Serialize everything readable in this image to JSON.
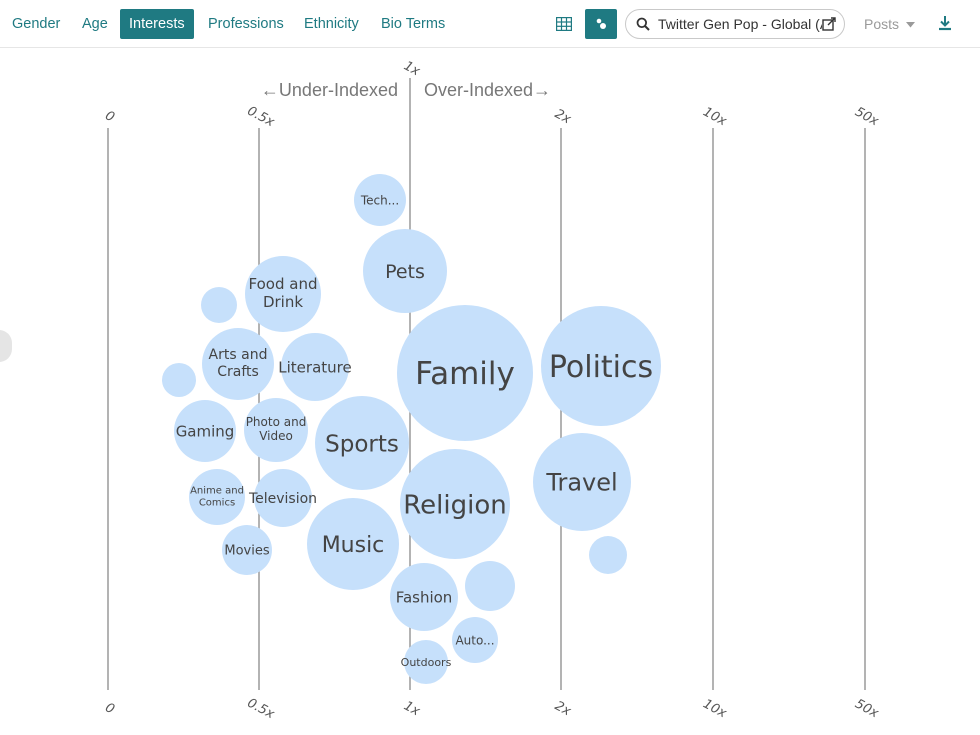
{
  "tabs": [
    {
      "label": "Gender",
      "active": false
    },
    {
      "label": "Age",
      "active": false
    },
    {
      "label": "Interests",
      "active": true
    },
    {
      "label": "Professions",
      "active": false
    },
    {
      "label": "Ethnicity",
      "active": false
    },
    {
      "label": "Bio Terms",
      "active": false
    }
  ],
  "view_toggle": {
    "table_icon": "table-icon",
    "bubble_icon": "bubble-chart-icon",
    "active": "bubble"
  },
  "search": {
    "value": "Twitter Gen Pop - Global (All",
    "icon": "search-icon",
    "open_icon": "open-external-icon"
  },
  "posts_dropdown": {
    "label": "Posts",
    "icon": "caret-down-icon"
  },
  "download": {
    "icon": "download-icon"
  },
  "colors": {
    "accent": "#1f7a82",
    "bubble": "#c6e0fb",
    "axis": "#8a8a8a"
  },
  "chart": {
    "under_label": "←Under-Indexed",
    "over_label": "Over-Indexed→",
    "axis_ticks": [
      "0",
      "0.5x",
      "1x",
      "2x",
      "10x",
      "50x"
    ],
    "center_tick": "1x"
  },
  "chart_data": {
    "type": "scatter",
    "title": "",
    "xlabel": "",
    "ylabel": "",
    "x_ticks": [
      "0",
      "0.5x",
      "1x",
      "2x",
      "10x",
      "50x"
    ],
    "points": [
      {
        "label": "Tech...",
        "index": 0.9,
        "size": 26
      },
      {
        "label": "Pets",
        "index": 0.98,
        "size": 42
      },
      {
        "label": "Food and Drink",
        "index": 0.58,
        "size": 38
      },
      {
        "label": "",
        "index": 0.35,
        "size": 18
      },
      {
        "label": "Arts and Crafts",
        "index": 0.42,
        "size": 36
      },
      {
        "label": "Literature",
        "index": 0.68,
        "size": 34
      },
      {
        "label": "",
        "index": 0.21,
        "size": 17
      },
      {
        "label": "Family",
        "index": 1.36,
        "size": 68
      },
      {
        "label": "Politics",
        "index": 2.3,
        "size": 60
      },
      {
        "label": "Gaming",
        "index": 0.3,
        "size": 31
      },
      {
        "label": "Photo and Video",
        "index": 0.55,
        "size": 32
      },
      {
        "label": "Sports",
        "index": 0.84,
        "size": 47
      },
      {
        "label": "Travel",
        "index": 2.13,
        "size": 49
      },
      {
        "label": "Anime and Comics",
        "index": 0.36,
        "size": 28
      },
      {
        "label": "Television",
        "index": 0.58,
        "size": 29
      },
      {
        "label": "Religion",
        "index": 1.3,
        "size": 55
      },
      {
        "label": "Movies",
        "index": 0.46,
        "size": 25
      },
      {
        "label": "Music",
        "index": 0.77,
        "size": 46
      },
      {
        "label": "",
        "index": 2.3,
        "size": 19
      },
      {
        "label": "",
        "index": 1.53,
        "size": 25
      },
      {
        "label": "Fashion",
        "index": 1.09,
        "size": 34
      },
      {
        "label": "Auto...",
        "index": 1.42,
        "size": 23
      },
      {
        "label": "Outdoors",
        "index": 1.11,
        "size": 22
      }
    ]
  }
}
